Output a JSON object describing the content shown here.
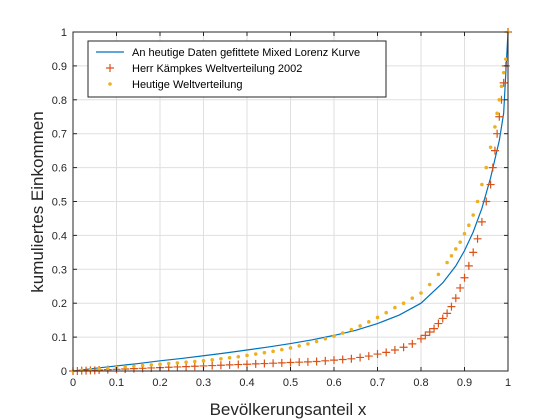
{
  "chart_data": {
    "type": "line",
    "title": "",
    "xlabel": "Bevölkerungsanteil x",
    "ylabel": "kumuliertes Einkommen",
    "xlim": [
      0,
      1
    ],
    "ylim": [
      0,
      1
    ],
    "xticks": [
      0,
      0.1,
      0.2,
      0.3,
      0.4,
      0.5,
      0.6,
      0.7,
      0.8,
      0.9,
      1
    ],
    "yticks": [
      0,
      0.1,
      0.2,
      0.3,
      0.4,
      0.5,
      0.6,
      0.7,
      0.8,
      0.9,
      1
    ],
    "grid": true,
    "legend_position": "top-left",
    "series": [
      {
        "name": "An heutige Daten gefittete Mixed Lorenz Kurve",
        "style": "line",
        "color": "#0072BD",
        "x": [
          0,
          0.05,
          0.1,
          0.15,
          0.2,
          0.25,
          0.3,
          0.35,
          0.4,
          0.45,
          0.5,
          0.55,
          0.6,
          0.65,
          0.7,
          0.75,
          0.8,
          0.85,
          0.88,
          0.9,
          0.92,
          0.94,
          0.96,
          0.98,
          0.99,
          1.0
        ],
        "y": [
          0,
          0.008,
          0.015,
          0.022,
          0.03,
          0.037,
          0.045,
          0.053,
          0.062,
          0.071,
          0.081,
          0.092,
          0.105,
          0.12,
          0.14,
          0.165,
          0.2,
          0.26,
          0.31,
          0.355,
          0.41,
          0.48,
          0.57,
          0.68,
          0.76,
          1.0
        ]
      },
      {
        "name": "Herr Kämpkes Weltverteilung 2002",
        "style": "marker-plus",
        "color": "#D95319",
        "x": [
          0,
          0.01,
          0.02,
          0.03,
          0.04,
          0.05,
          0.06,
          0.08,
          0.1,
          0.12,
          0.14,
          0.16,
          0.18,
          0.2,
          0.22,
          0.24,
          0.26,
          0.28,
          0.3,
          0.32,
          0.34,
          0.36,
          0.38,
          0.4,
          0.42,
          0.44,
          0.46,
          0.48,
          0.5,
          0.52,
          0.54,
          0.56,
          0.58,
          0.6,
          0.62,
          0.64,
          0.66,
          0.68,
          0.7,
          0.72,
          0.74,
          0.76,
          0.78,
          0.8,
          0.81,
          0.82,
          0.83,
          0.84,
          0.85,
          0.86,
          0.87,
          0.88,
          0.89,
          0.9,
          0.91,
          0.92,
          0.93,
          0.94,
          0.95,
          0.96,
          0.965,
          0.97,
          0.975,
          0.98,
          0.985,
          0.99,
          0.995,
          1.0
        ],
        "y": [
          0,
          0,
          0.001,
          0.001,
          0.002,
          0.002,
          0.003,
          0.004,
          0.005,
          0.006,
          0.007,
          0.008,
          0.009,
          0.01,
          0.011,
          0.012,
          0.013,
          0.014,
          0.015,
          0.016,
          0.017,
          0.018,
          0.019,
          0.02,
          0.021,
          0.022,
          0.023,
          0.024,
          0.025,
          0.026,
          0.027,
          0.028,
          0.03,
          0.032,
          0.034,
          0.036,
          0.04,
          0.044,
          0.05,
          0.055,
          0.062,
          0.07,
          0.08,
          0.095,
          0.105,
          0.115,
          0.125,
          0.14,
          0.155,
          0.17,
          0.19,
          0.215,
          0.245,
          0.275,
          0.31,
          0.35,
          0.39,
          0.44,
          0.5,
          0.55,
          0.6,
          0.65,
          0.7,
          0.75,
          0.8,
          0.85,
          0.9,
          1.0
        ]
      },
      {
        "name": "Heutige Weltverteilung",
        "style": "marker-dot",
        "color": "#EDB120",
        "x": [
          0,
          0.02,
          0.04,
          0.06,
          0.08,
          0.1,
          0.12,
          0.14,
          0.16,
          0.18,
          0.2,
          0.22,
          0.24,
          0.26,
          0.28,
          0.3,
          0.32,
          0.34,
          0.36,
          0.38,
          0.4,
          0.42,
          0.44,
          0.46,
          0.48,
          0.5,
          0.52,
          0.54,
          0.56,
          0.58,
          0.6,
          0.62,
          0.64,
          0.66,
          0.68,
          0.7,
          0.72,
          0.74,
          0.76,
          0.78,
          0.8,
          0.82,
          0.84,
          0.86,
          0.87,
          0.88,
          0.89,
          0.9,
          0.91,
          0.92,
          0.93,
          0.94,
          0.95,
          0.96,
          0.97,
          0.975,
          0.98,
          0.985,
          0.99,
          0.995,
          1.0
        ],
        "y": [
          0,
          0.002,
          0.004,
          0.006,
          0.008,
          0.01,
          0.012,
          0.014,
          0.016,
          0.018,
          0.02,
          0.022,
          0.024,
          0.026,
          0.028,
          0.03,
          0.033,
          0.036,
          0.039,
          0.042,
          0.046,
          0.05,
          0.054,
          0.058,
          0.063,
          0.068,
          0.074,
          0.08,
          0.087,
          0.095,
          0.103,
          0.112,
          0.122,
          0.133,
          0.145,
          0.158,
          0.172,
          0.187,
          0.2,
          0.215,
          0.23,
          0.255,
          0.285,
          0.32,
          0.34,
          0.36,
          0.38,
          0.405,
          0.43,
          0.46,
          0.5,
          0.55,
          0.6,
          0.66,
          0.72,
          0.76,
          0.8,
          0.84,
          0.88,
          0.92,
          1.0
        ]
      }
    ]
  }
}
